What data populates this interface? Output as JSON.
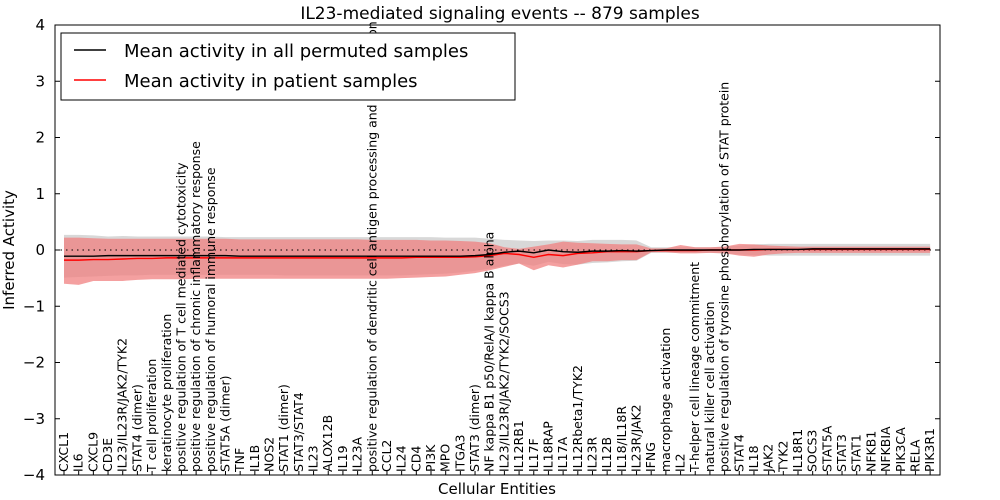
{
  "chart_data": {
    "type": "line",
    "title": "IL23-mediated signaling events -- 879 samples",
    "xlabel": "Cellular Entities",
    "ylabel": "Inferred Activity",
    "ylim": [
      -4,
      4
    ],
    "yticks": [
      "−4",
      "−3",
      "−2",
      "−1",
      "0",
      "1",
      "2",
      "3",
      "4"
    ],
    "categories": [
      "CXCL1",
      "IL6",
      "CXCL9",
      "CD3E",
      "IL23/IL23R/JAK2/TYK2",
      "STAT4 (dimer)",
      "T cell proliferation",
      "keratinocyte proliferation",
      "positive regulation of T cell mediated cytotoxicity",
      "positive regulation of chronic inflammatory response",
      "positive regulation of humoral immune response",
      "STAT5A (dimer)",
      "TNF",
      "IL1B",
      "NOS2",
      "STAT1 (dimer)",
      "STAT3/STAT4",
      "IL23",
      "ALOX12B",
      "IL19",
      "IL23A",
      "positive regulation of dendritic cell antigen processing and presentation",
      "CCL2",
      "IL24",
      "CD4",
      "PI3K",
      "MPO",
      "ITGA3",
      "STAT3 (dimer)",
      "NF kappa B1 p50/RelA/I kappa B alpha",
      "IL23/IL23R/JAK2/TYK2/SOCS3",
      "IL12RB1",
      "IL17F",
      "IL18RAP",
      "IL17A",
      "IL12Rbeta1/TYK2",
      "IL23R",
      "IL12B",
      "IL18/IL18R",
      "IL23R/JAK2",
      "IFNG",
      "macrophage activation",
      "IL2",
      "T-helper cell lineage commitment",
      "natural killer cell activation",
      "positive regulation of tyrosine phosphorylation of STAT protein",
      "STAT4",
      "IL18",
      "JAK2",
      "TYK2",
      "IL18R1",
      "SOCS3",
      "STAT5A",
      "STAT3",
      "STAT1",
      "NFKB1",
      "NFKBIA",
      "PIK3CA",
      "RELA",
      "PIK3R1"
    ],
    "series": [
      {
        "name": "Mean activity in all permuted samples",
        "color": "#000000",
        "values": [
          -0.11,
          -0.11,
          -0.11,
          -0.1,
          -0.1,
          -0.1,
          -0.1,
          -0.1,
          -0.1,
          -0.1,
          -0.1,
          -0.1,
          -0.11,
          -0.11,
          -0.11,
          -0.11,
          -0.11,
          -0.11,
          -0.11,
          -0.11,
          -0.11,
          -0.11,
          -0.11,
          -0.11,
          -0.11,
          -0.11,
          -0.11,
          -0.11,
          -0.1,
          -0.08,
          -0.04,
          -0.02,
          -0.05,
          0.0,
          -0.03,
          -0.04,
          -0.02,
          -0.02,
          -0.01,
          -0.02,
          -0.01,
          0.0,
          0.0,
          0.0,
          0.0,
          0.0,
          0.0,
          0.01,
          0.01,
          0.01,
          0.01,
          0.02,
          0.02,
          0.02,
          0.02,
          0.02,
          0.02,
          0.02,
          0.02,
          0.02
        ],
        "upper": [
          0.27,
          0.27,
          0.26,
          0.24,
          0.25,
          0.24,
          0.24,
          0.24,
          0.24,
          0.24,
          0.24,
          0.23,
          0.23,
          0.23,
          0.23,
          0.23,
          0.23,
          0.23,
          0.23,
          0.23,
          0.23,
          0.23,
          0.23,
          0.23,
          0.23,
          0.23,
          0.22,
          0.22,
          0.22,
          0.2,
          0.18,
          0.17,
          0.16,
          0.17,
          0.17,
          0.16,
          0.18,
          0.18,
          0.18,
          0.17,
          0.05,
          0.05,
          0.05,
          0.05,
          0.05,
          0.06,
          0.08,
          0.1,
          0.11,
          0.11,
          0.11,
          0.11,
          0.11,
          0.11,
          0.11,
          0.11,
          0.11,
          0.11,
          0.11,
          0.11
        ],
        "lower": [
          -0.49,
          -0.48,
          -0.47,
          -0.46,
          -0.45,
          -0.45,
          -0.44,
          -0.44,
          -0.44,
          -0.44,
          -0.44,
          -0.44,
          -0.44,
          -0.44,
          -0.44,
          -0.45,
          -0.45,
          -0.45,
          -0.45,
          -0.45,
          -0.45,
          -0.45,
          -0.45,
          -0.45,
          -0.44,
          -0.43,
          -0.42,
          -0.4,
          -0.37,
          -0.33,
          -0.28,
          -0.24,
          -0.28,
          -0.21,
          -0.25,
          -0.26,
          -0.23,
          -0.22,
          -0.2,
          -0.19,
          -0.05,
          -0.05,
          -0.05,
          -0.05,
          -0.05,
          -0.06,
          -0.08,
          -0.09,
          -0.1,
          -0.1,
          -0.1,
          -0.1,
          -0.1,
          -0.1,
          -0.1,
          -0.1,
          -0.1,
          -0.1,
          -0.1,
          -0.1
        ]
      },
      {
        "name": "Mean activity in patient samples",
        "color": "#ff0000",
        "values": [
          -0.18,
          -0.18,
          -0.17,
          -0.17,
          -0.16,
          -0.15,
          -0.15,
          -0.14,
          -0.14,
          -0.14,
          -0.14,
          -0.14,
          -0.14,
          -0.14,
          -0.14,
          -0.14,
          -0.14,
          -0.14,
          -0.14,
          -0.14,
          -0.14,
          -0.14,
          -0.14,
          -0.14,
          -0.13,
          -0.13,
          -0.13,
          -0.13,
          -0.12,
          -0.1,
          -0.06,
          -0.08,
          -0.13,
          -0.08,
          -0.1,
          -0.06,
          -0.05,
          -0.03,
          -0.03,
          -0.03,
          -0.01,
          -0.01,
          -0.01,
          -0.01,
          0.0,
          0.0,
          0.0,
          0.0,
          0.01,
          0.01,
          0.01,
          0.01,
          0.01,
          0.01,
          0.01,
          0.01,
          0.01,
          0.01,
          0.01,
          0.01
        ],
        "upper": [
          0.22,
          0.22,
          0.21,
          0.2,
          0.2,
          0.2,
          0.2,
          0.2,
          0.2,
          0.2,
          0.2,
          0.2,
          0.19,
          0.19,
          0.19,
          0.19,
          0.19,
          0.19,
          0.19,
          0.19,
          0.19,
          0.18,
          0.18,
          0.18,
          0.18,
          0.17,
          0.17,
          0.16,
          0.15,
          0.12,
          0.05,
          0.02,
          0.06,
          0.1,
          0.15,
          0.13,
          0.12,
          0.11,
          0.1,
          0.1,
          0.03,
          0.03,
          0.09,
          0.05,
          0.05,
          0.06,
          0.11,
          0.1,
          0.08,
          0.07,
          0.06,
          0.06,
          0.06,
          0.06,
          0.06,
          0.06,
          0.06,
          0.06,
          0.06,
          0.06
        ],
        "lower": [
          -0.6,
          -0.62,
          -0.55,
          -0.55,
          -0.55,
          -0.53,
          -0.52,
          -0.52,
          -0.52,
          -0.51,
          -0.51,
          -0.51,
          -0.51,
          -0.51,
          -0.51,
          -0.51,
          -0.51,
          -0.51,
          -0.51,
          -0.51,
          -0.51,
          -0.51,
          -0.51,
          -0.5,
          -0.49,
          -0.48,
          -0.47,
          -0.44,
          -0.41,
          -0.36,
          -0.3,
          -0.24,
          -0.36,
          -0.27,
          -0.31,
          -0.26,
          -0.2,
          -0.2,
          -0.18,
          -0.18,
          -0.04,
          -0.04,
          -0.06,
          -0.06,
          -0.05,
          -0.06,
          -0.1,
          -0.12,
          -0.08,
          -0.06,
          -0.05,
          -0.05,
          -0.05,
          -0.05,
          -0.05,
          -0.05,
          -0.05,
          -0.05,
          -0.05,
          -0.05
        ]
      }
    ],
    "reference_line": 0,
    "legend_position": "top-left"
  },
  "colors": {
    "permuted_band": "#c8c8c8",
    "patient_band": "#f08080"
  }
}
